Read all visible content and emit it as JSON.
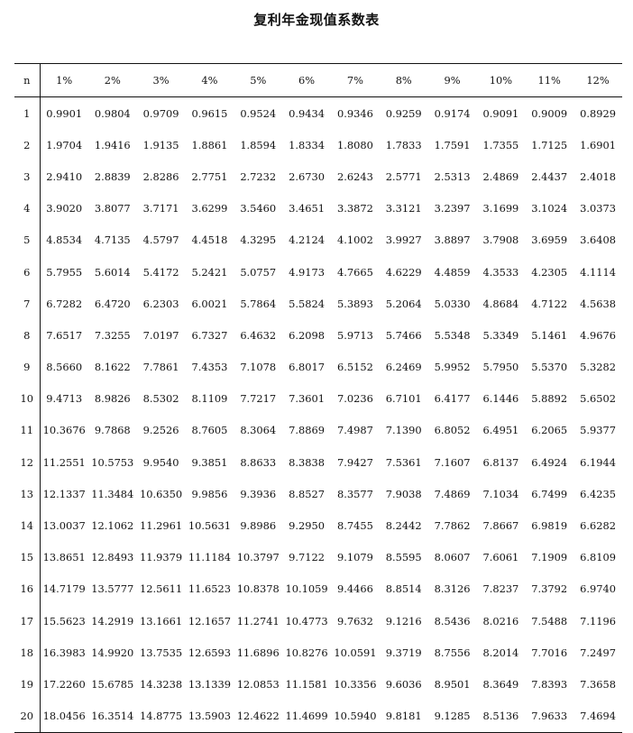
{
  "title": "复利年金现值系数表",
  "header": [
    "n",
    "1%",
    "2%",
    "3%",
    "4%",
    "5%",
    "6%",
    "7%",
    "8%",
    "9%",
    "10%",
    "11%",
    "12%"
  ],
  "rows": [
    [
      "1",
      "0.9901",
      "0.9804",
      "0.9709",
      "0.9615",
      "0.9524",
      "0.9434",
      "0.9346",
      "0.9259",
      "0.9174",
      "0.9091",
      "0.9009",
      "0.8929"
    ],
    [
      "2",
      "1.9704",
      "1.9416",
      "1.9135",
      "1.8861",
      "1.8594",
      "1.8334",
      "1.8080",
      "1.7833",
      "1.7591",
      "1.7355",
      "1.7125",
      "1.6901"
    ],
    [
      "3",
      "2.9410",
      "2.8839",
      "2.8286",
      "2.7751",
      "2.7232",
      "2.6730",
      "2.6243",
      "2.5771",
      "2.5313",
      "2.4869",
      "2.4437",
      "2.4018"
    ],
    [
      "4",
      "3.9020",
      "3.8077",
      "3.7171",
      "3.6299",
      "3.5460",
      "3.4651",
      "3.3872",
      "3.3121",
      "3.2397",
      "3.1699",
      "3.1024",
      "3.0373"
    ],
    [
      "5",
      "4.8534",
      "4.7135",
      "4.5797",
      "4.4518",
      "4.3295",
      "4.2124",
      "4.1002",
      "3.9927",
      "3.8897",
      "3.7908",
      "3.6959",
      "3.6408"
    ],
    [
      "6",
      "5.7955",
      "5.6014",
      "5.4172",
      "5.2421",
      "5.0757",
      "4.9173",
      "4.7665",
      "4.6229",
      "4.4859",
      "4.3533",
      "4.2305",
      "4.1114"
    ],
    [
      "7",
      "6.7282",
      "6.4720",
      "6.2303",
      "6.0021",
      "5.7864",
      "5.5824",
      "5.3893",
      "5.2064",
      "5.0330",
      "4.8684",
      "4.7122",
      "4.5638"
    ],
    [
      "8",
      "7.6517",
      "7.3255",
      "7.0197",
      "6.7327",
      "6.4632",
      "6.2098",
      "5.9713",
      "5.7466",
      "5.5348",
      "5.3349",
      "5.1461",
      "4.9676"
    ],
    [
      "9",
      "8.5660",
      "8.1622",
      "7.7861",
      "7.4353",
      "7.1078",
      "6.8017",
      "6.5152",
      "6.2469",
      "5.9952",
      "5.7950",
      "5.5370",
      "5.3282"
    ],
    [
      "10",
      "9.4713",
      "8.9826",
      "8.5302",
      "8.1109",
      "7.7217",
      "7.3601",
      "7.0236",
      "6.7101",
      "6.4177",
      "6.1446",
      "5.8892",
      "5.6502"
    ],
    [
      "11",
      "10.3676",
      "9.7868",
      "9.2526",
      "8.7605",
      "8.3064",
      "7.8869",
      "7.4987",
      "7.1390",
      "6.8052",
      "6.4951",
      "6.2065",
      "5.9377"
    ],
    [
      "12",
      "11.2551",
      "10.5753",
      "9.9540",
      "9.3851",
      "8.8633",
      "8.3838",
      "7.9427",
      "7.5361",
      "7.1607",
      "6.8137",
      "6.4924",
      "6.1944"
    ],
    [
      "13",
      "12.1337",
      "11.3484",
      "10.6350",
      "9.9856",
      "9.3936",
      "8.8527",
      "8.3577",
      "7.9038",
      "7.4869",
      "7.1034",
      "6.7499",
      "6.4235"
    ],
    [
      "14",
      "13.0037",
      "12.1062",
      "11.2961",
      "10.5631",
      "9.8986",
      "9.2950",
      "8.7455",
      "8.2442",
      "7.7862",
      "7.8667",
      "6.9819",
      "6.6282"
    ],
    [
      "15",
      "13.8651",
      "12.8493",
      "11.9379",
      "11.1184",
      "10.3797",
      "9.7122",
      "9.1079",
      "8.5595",
      "8.0607",
      "7.6061",
      "7.1909",
      "6.8109"
    ],
    [
      "16",
      "14.7179",
      "13.5777",
      "12.5611",
      "11.6523",
      "10.8378",
      "10.1059",
      "9.4466",
      "8.8514",
      "8.3126",
      "7.8237",
      "7.3792",
      "6.9740"
    ],
    [
      "17",
      "15.5623",
      "14.2919",
      "13.1661",
      "12.1657",
      "11.2741",
      "10.4773",
      "9.7632",
      "9.1216",
      "8.5436",
      "8.0216",
      "7.5488",
      "7.1196"
    ],
    [
      "18",
      "16.3983",
      "14.9920",
      "13.7535",
      "12.6593",
      "11.6896",
      "10.8276",
      "10.0591",
      "9.3719",
      "8.7556",
      "8.2014",
      "7.7016",
      "7.2497"
    ],
    [
      "19",
      "17.2260",
      "15.6785",
      "14.3238",
      "13.1339",
      "12.0853",
      "11.1581",
      "10.3356",
      "9.6036",
      "8.9501",
      "8.3649",
      "7.8393",
      "7.3658"
    ],
    [
      "20",
      "18.0456",
      "16.3514",
      "14.8775",
      "13.5903",
      "12.4622",
      "11.4699",
      "10.5940",
      "9.8181",
      "9.1285",
      "8.5136",
      "7.9633",
      "7.4694"
    ]
  ]
}
